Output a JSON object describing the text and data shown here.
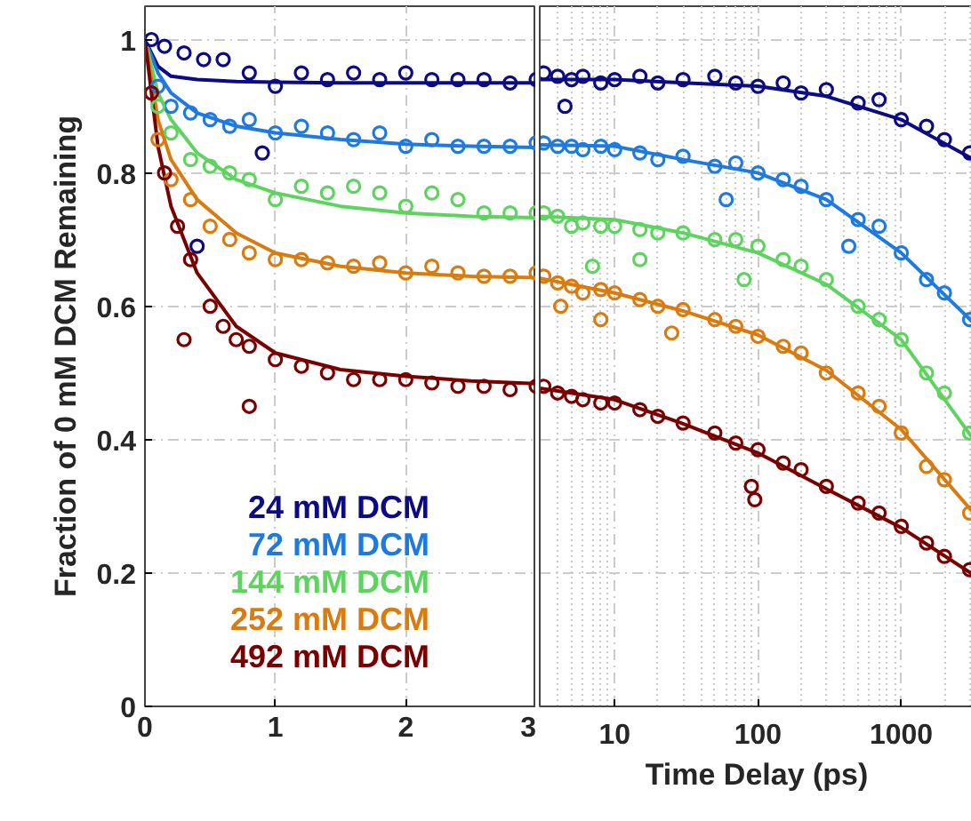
{
  "chart_data": [
    {
      "type": "scatter",
      "ylabel": "Fraction of 0 mM DCM Remaining",
      "xlim": [
        0,
        3
      ],
      "xticks": [
        0,
        1,
        2,
        3
      ],
      "ylim": [
        0,
        1.05
      ],
      "yticks": [
        0,
        0.2,
        0.4,
        0.6,
        0.8,
        1
      ],
      "grid": true,
      "legend": "bottom left",
      "marker": "circle",
      "series": [
        {
          "name": "24 mM DCM",
          "color": "#0b0b86",
          "x": [
            0.05,
            0.15,
            0.3,
            0.45,
            0.6,
            0.8,
            1.0,
            1.2,
            1.4,
            1.6,
            1.8,
            2.0,
            2.2,
            2.4,
            2.6,
            2.8,
            3.0,
            0.9,
            0.4
          ],
          "values": [
            1.0,
            0.99,
            0.98,
            0.97,
            0.97,
            0.95,
            0.93,
            0.95,
            0.94,
            0.95,
            0.94,
            0.95,
            0.94,
            0.94,
            0.94,
            0.935,
            0.94,
            0.83,
            0.69
          ]
        },
        {
          "name": "72 mM DCM",
          "color": "#1f7ae0",
          "x": [
            0.1,
            0.2,
            0.35,
            0.5,
            0.65,
            0.8,
            1.0,
            1.2,
            1.4,
            1.6,
            1.8,
            2.0,
            2.2,
            2.4,
            2.6,
            2.8,
            3.0
          ],
          "values": [
            0.93,
            0.9,
            0.89,
            0.88,
            0.87,
            0.88,
            0.86,
            0.87,
            0.86,
            0.85,
            0.86,
            0.84,
            0.85,
            0.84,
            0.84,
            0.84,
            0.845
          ]
        },
        {
          "name": "144 mM DCM",
          "color": "#5fd35f",
          "x": [
            0.1,
            0.2,
            0.35,
            0.5,
            0.65,
            0.8,
            1.0,
            1.2,
            1.4,
            1.6,
            1.8,
            2.0,
            2.2,
            2.4,
            2.6,
            2.8,
            3.0
          ],
          "values": [
            0.9,
            0.86,
            0.82,
            0.81,
            0.8,
            0.79,
            0.76,
            0.78,
            0.77,
            0.78,
            0.77,
            0.75,
            0.77,
            0.76,
            0.74,
            0.74,
            0.74
          ]
        },
        {
          "name": "252 mM DCM",
          "color": "#d97b0e",
          "x": [
            0.1,
            0.2,
            0.35,
            0.5,
            0.65,
            0.8,
            1.0,
            1.2,
            1.4,
            1.6,
            1.8,
            2.0,
            2.2,
            2.4,
            2.6,
            2.8,
            3.0
          ],
          "values": [
            0.85,
            0.79,
            0.76,
            0.72,
            0.7,
            0.68,
            0.67,
            0.67,
            0.665,
            0.66,
            0.665,
            0.65,
            0.66,
            0.65,
            0.645,
            0.645,
            0.65
          ]
        },
        {
          "name": "492 mM DCM",
          "color": "#7a0000",
          "x": [
            0.05,
            0.15,
            0.25,
            0.35,
            0.5,
            0.6,
            0.7,
            0.8,
            1.0,
            1.2,
            1.4,
            1.6,
            1.8,
            2.0,
            2.2,
            2.4,
            2.6,
            2.8,
            3.0,
            0.3,
            0.8
          ],
          "values": [
            0.92,
            0.8,
            0.72,
            0.67,
            0.6,
            0.57,
            0.55,
            0.54,
            0.52,
            0.51,
            0.5,
            0.49,
            0.49,
            0.49,
            0.485,
            0.48,
            0.48,
            0.475,
            0.48,
            0.55,
            0.45
          ]
        },
        {
          "type": "line",
          "marker": "none",
          "color": "#0b0b86",
          "x": [
            0,
            0.1,
            0.2,
            0.4,
            0.7,
            1,
            1.5,
            2,
            2.5,
            3
          ],
          "values": [
            1.0,
            0.96,
            0.945,
            0.94,
            0.937,
            0.936,
            0.935,
            0.935,
            0.935,
            0.935
          ]
        },
        {
          "type": "line",
          "marker": "none",
          "color": "#1f7ae0",
          "x": [
            0,
            0.1,
            0.2,
            0.4,
            0.7,
            1,
            1.5,
            2,
            2.5,
            3
          ],
          "values": [
            1.0,
            0.95,
            0.92,
            0.89,
            0.87,
            0.86,
            0.85,
            0.843,
            0.84,
            0.838
          ]
        },
        {
          "type": "line",
          "marker": "none",
          "color": "#5fd35f",
          "x": [
            0,
            0.1,
            0.2,
            0.4,
            0.7,
            1,
            1.5,
            2,
            2.5,
            3
          ],
          "values": [
            1.0,
            0.92,
            0.88,
            0.83,
            0.79,
            0.77,
            0.75,
            0.74,
            0.735,
            0.733
          ]
        },
        {
          "type": "line",
          "marker": "none",
          "color": "#d97b0e",
          "x": [
            0,
            0.1,
            0.2,
            0.4,
            0.7,
            1,
            1.5,
            2,
            2.5,
            3
          ],
          "values": [
            1.0,
            0.88,
            0.82,
            0.76,
            0.71,
            0.68,
            0.66,
            0.65,
            0.645,
            0.643
          ]
        },
        {
          "type": "line",
          "marker": "none",
          "color": "#7a0000",
          "x": [
            0,
            0.1,
            0.2,
            0.4,
            0.7,
            1,
            1.5,
            2,
            2.5,
            3
          ],
          "values": [
            1.0,
            0.84,
            0.75,
            0.65,
            0.57,
            0.53,
            0.505,
            0.495,
            0.488,
            0.484
          ]
        }
      ]
    },
    {
      "type": "scatter",
      "xlabel": "Time Delay (ps)",
      "log": "x",
      "xlim": [
        3,
        3200
      ],
      "xticks": [
        10,
        100,
        1000
      ],
      "ylim": [
        0,
        1.05
      ],
      "yticks": [
        0,
        0.2,
        0.4,
        0.6,
        0.8,
        1
      ],
      "tick_labels": "x",
      "grid": true,
      "marker": "circle",
      "series": [
        {
          "color": "#0b0b86",
          "x": [
            3.2,
            4,
            5,
            6,
            8,
            10,
            15,
            20,
            30,
            50,
            70,
            100,
            150,
            200,
            300,
            500,
            700,
            1000,
            1500,
            2000,
            3000,
            4.5
          ],
          "values": [
            0.95,
            0.945,
            0.94,
            0.945,
            0.935,
            0.94,
            0.945,
            0.935,
            0.94,
            0.945,
            0.935,
            0.93,
            0.935,
            0.92,
            0.925,
            0.905,
            0.91,
            0.88,
            0.87,
            0.85,
            0.83,
            0.9
          ]
        },
        {
          "color": "#1f7ae0",
          "x": [
            3.2,
            4,
            5,
            6,
            8,
            10,
            15,
            20,
            30,
            50,
            70,
            100,
            150,
            200,
            300,
            500,
            700,
            1000,
            1500,
            2000,
            3000,
            60,
            430
          ],
          "values": [
            0.845,
            0.84,
            0.84,
            0.835,
            0.84,
            0.835,
            0.83,
            0.82,
            0.825,
            0.81,
            0.815,
            0.8,
            0.79,
            0.78,
            0.76,
            0.73,
            0.72,
            0.68,
            0.64,
            0.62,
            0.58,
            0.76,
            0.69
          ]
        },
        {
          "color": "#5fd35f",
          "x": [
            3.2,
            4,
            5,
            6,
            8,
            10,
            15,
            20,
            30,
            50,
            70,
            100,
            150,
            200,
            300,
            500,
            700,
            1000,
            1500,
            2000,
            3000,
            7,
            80,
            15
          ],
          "values": [
            0.74,
            0.735,
            0.72,
            0.725,
            0.72,
            0.72,
            0.715,
            0.71,
            0.71,
            0.7,
            0.7,
            0.69,
            0.67,
            0.66,
            0.64,
            0.6,
            0.58,
            0.55,
            0.5,
            0.47,
            0.41,
            0.66,
            0.64,
            0.67
          ]
        },
        {
          "color": "#d97b0e",
          "x": [
            3.2,
            4,
            5,
            6,
            8,
            10,
            15,
            20,
            30,
            50,
            70,
            100,
            150,
            200,
            300,
            500,
            700,
            1000,
            1500,
            2000,
            3000,
            4.2,
            8,
            25
          ],
          "values": [
            0.645,
            0.635,
            0.63,
            0.62,
            0.625,
            0.62,
            0.61,
            0.6,
            0.595,
            0.58,
            0.57,
            0.555,
            0.54,
            0.53,
            0.5,
            0.47,
            0.45,
            0.41,
            0.36,
            0.34,
            0.29,
            0.6,
            0.58,
            0.56
          ]
        },
        {
          "color": "#7a0000",
          "x": [
            3.2,
            4,
            5,
            6,
            8,
            10,
            15,
            20,
            30,
            50,
            70,
            100,
            150,
            200,
            300,
            500,
            700,
            1000,
            1500,
            2000,
            3000,
            90,
            95
          ],
          "values": [
            0.48,
            0.47,
            0.465,
            0.46,
            0.455,
            0.455,
            0.445,
            0.435,
            0.425,
            0.41,
            0.395,
            0.385,
            0.365,
            0.355,
            0.33,
            0.305,
            0.29,
            0.27,
            0.245,
            0.225,
            0.205,
            0.33,
            0.31
          ]
        },
        {
          "type": "line",
          "marker": "none",
          "color": "#0b0b86",
          "x": [
            3,
            10,
            30,
            100,
            300,
            1000,
            3200
          ],
          "values": [
            0.94,
            0.94,
            0.935,
            0.93,
            0.915,
            0.88,
            0.82
          ]
        },
        {
          "type": "line",
          "marker": "none",
          "color": "#1f7ae0",
          "x": [
            3,
            10,
            30,
            100,
            300,
            1000,
            3200
          ],
          "values": [
            0.842,
            0.84,
            0.82,
            0.8,
            0.76,
            0.68,
            0.575
          ]
        },
        {
          "type": "line",
          "marker": "none",
          "color": "#5fd35f",
          "x": [
            3,
            10,
            30,
            100,
            300,
            1000,
            3200
          ],
          "values": [
            0.735,
            0.73,
            0.71,
            0.68,
            0.633,
            0.55,
            0.4
          ]
        },
        {
          "type": "line",
          "marker": "none",
          "color": "#d97b0e",
          "x": [
            3,
            10,
            30,
            100,
            300,
            1000,
            3200
          ],
          "values": [
            0.642,
            0.62,
            0.593,
            0.557,
            0.504,
            0.415,
            0.29
          ]
        },
        {
          "type": "line",
          "marker": "none",
          "color": "#7a0000",
          "x": [
            3,
            10,
            30,
            100,
            300,
            1000,
            3200
          ],
          "values": [
            0.477,
            0.46,
            0.424,
            0.38,
            0.326,
            0.268,
            0.197
          ]
        }
      ]
    }
  ]
}
